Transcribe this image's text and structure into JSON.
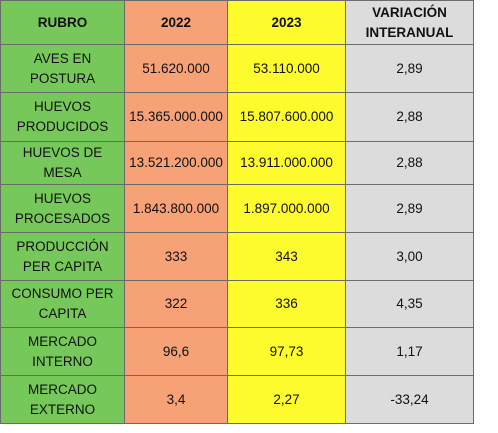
{
  "header": {
    "rubro": "RUBRO",
    "y2022": "2022",
    "y2023": "2023",
    "variacion": "VARIACIÓN INTERANUAL"
  },
  "rows": [
    {
      "rubro": "AVES EN POSTURA",
      "v2022": "51.620.000",
      "v2023": "53.110.000",
      "variacion": "2,89"
    },
    {
      "rubro": "HUEVOS PRODUCIDOS",
      "v2022": "15.365.000.000",
      "v2023": "15.807.600.000",
      "variacion": "2,88"
    },
    {
      "rubro": "HUEVOS DE MESA",
      "v2022": "13.521.200.000",
      "v2023": "13.911.000.000",
      "variacion": "2,88"
    },
    {
      "rubro": "HUEVOS PROCESADOS",
      "v2022": "1.843.800.000",
      "v2023": "1.897.000.000",
      "variacion": "2,89"
    },
    {
      "rubro": "PRODUCCIÓN PER CAPITA",
      "v2022": "333",
      "v2023": "343",
      "variacion": "3,00"
    },
    {
      "rubro": "CONSUMO PER CAPITA",
      "v2022": "322",
      "v2023": "336",
      "variacion": "4,35"
    },
    {
      "rubro": "MERCADO INTERNO",
      "v2022": "96,6",
      "v2023": "97,73",
      "variacion": "1,17"
    },
    {
      "rubro": "MERCADO EXTERNO",
      "v2022": "3,4",
      "v2023": "2,27",
      "variacion": "-33,24"
    }
  ],
  "colors": {
    "rubro_column": "#77c85a",
    "col_2022": "#f7a177",
    "col_2023": "#fdfb2e",
    "col_variacion": "#dcdcdc"
  }
}
